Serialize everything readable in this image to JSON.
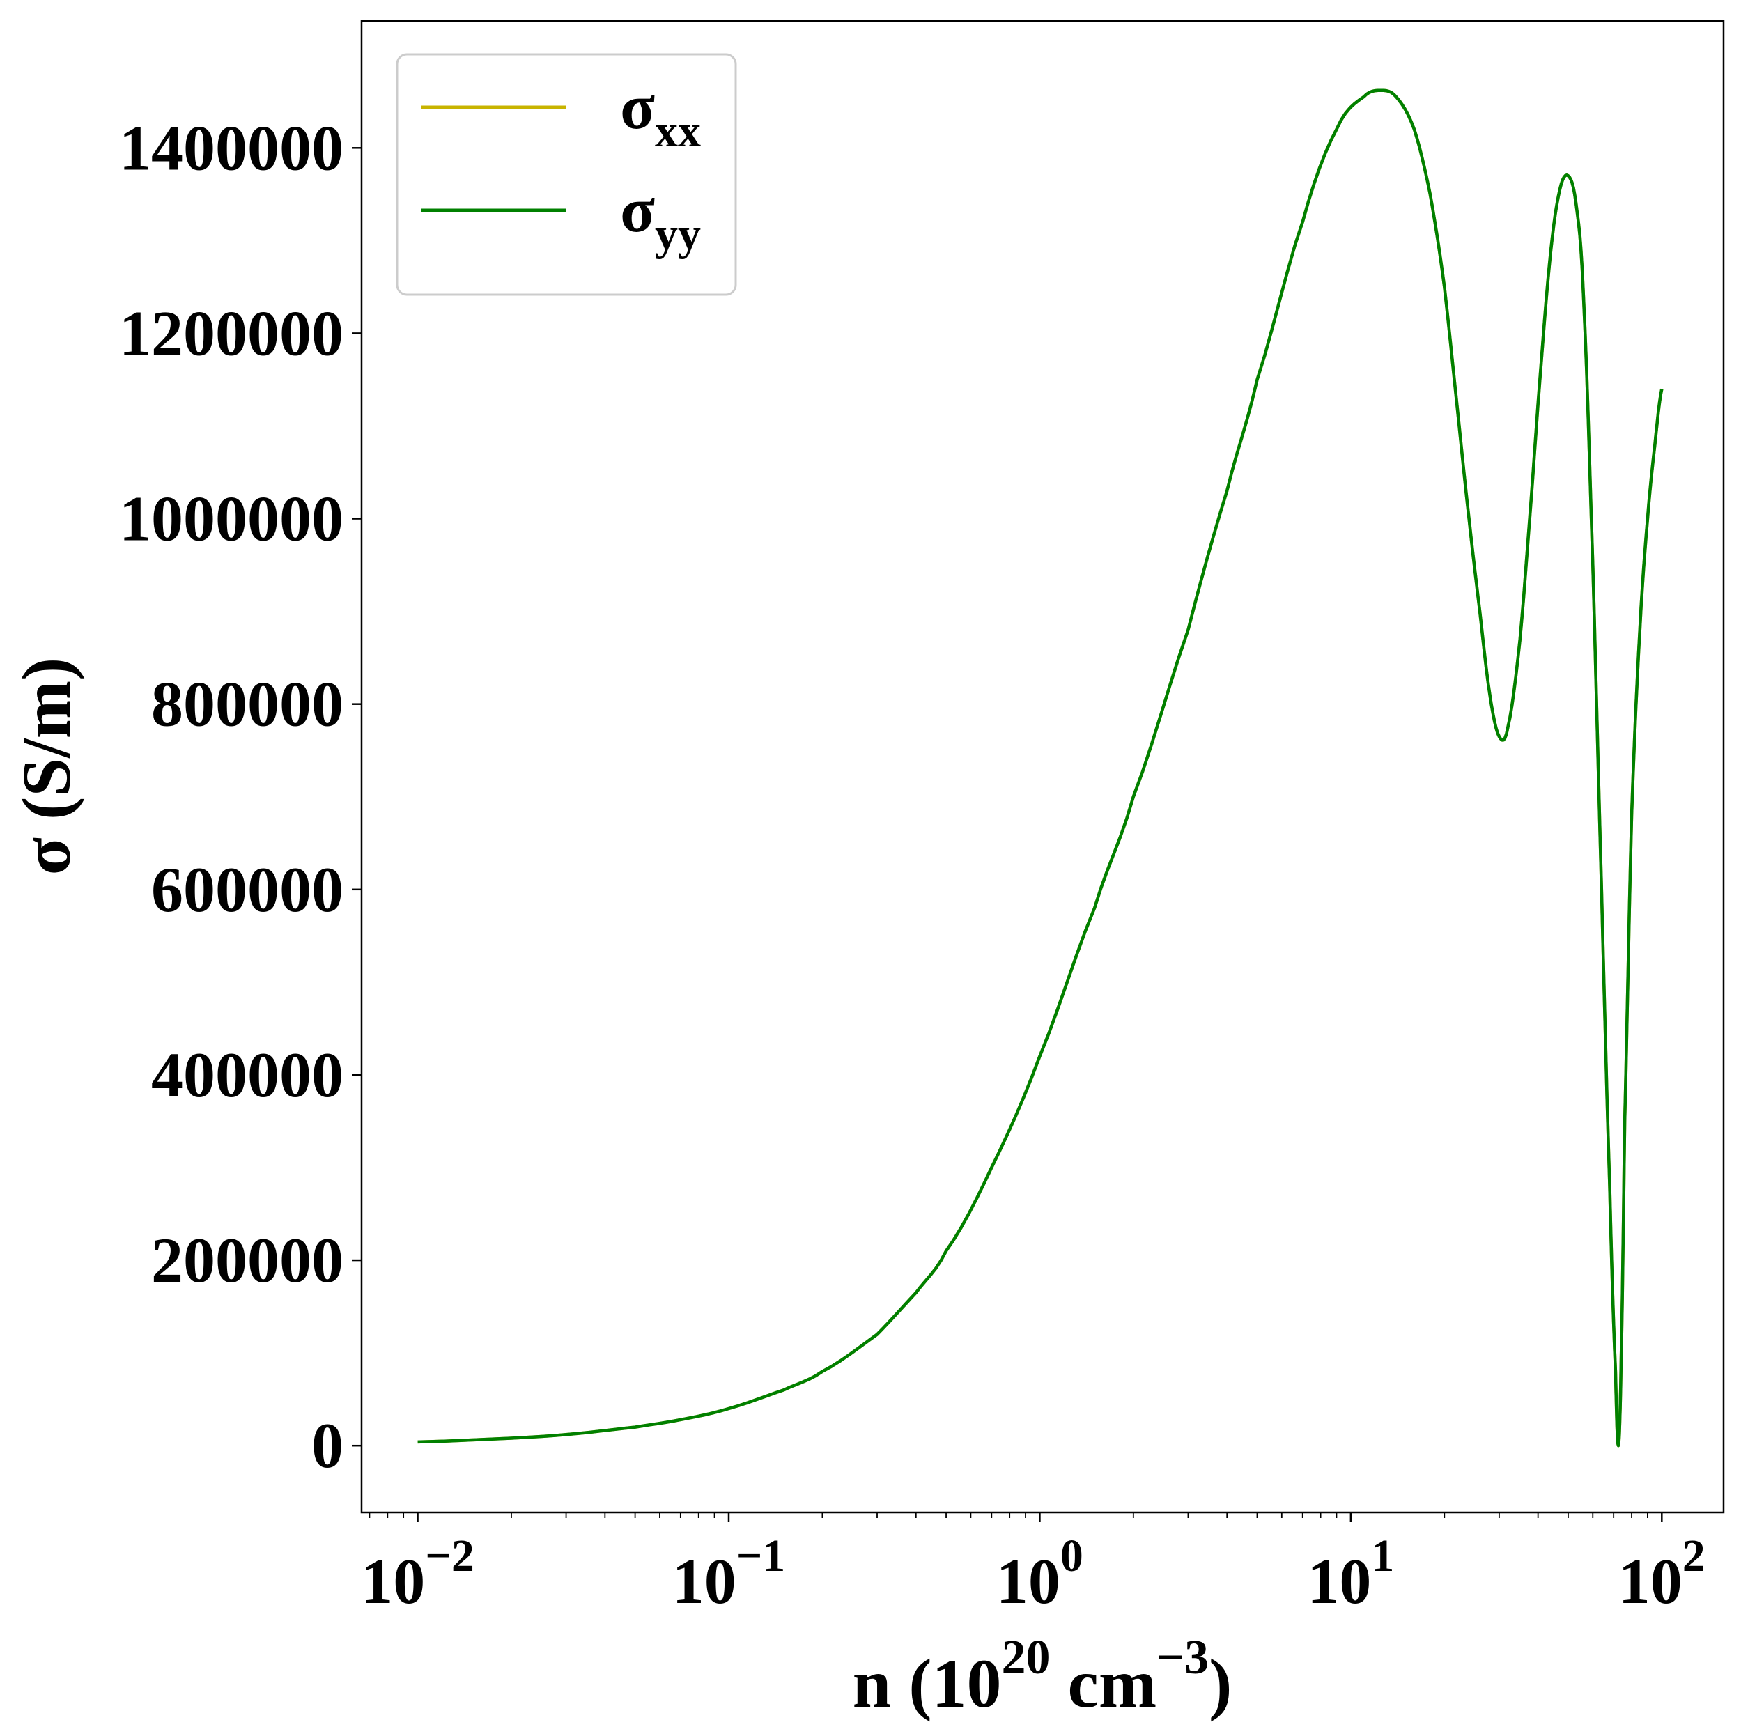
{
  "chart_data": {
    "type": "line",
    "xscale": "log",
    "xlim": [
      0.0066,
      158
    ],
    "ylim": [
      -72000,
      1537000
    ],
    "xlabel": {
      "base": "n (10",
      "exp1": "20",
      "mid": " cm",
      "exp2": "−3",
      "tail": ")"
    },
    "ylabel": "σ (S/m)",
    "grid": false,
    "legend_position": "top-left",
    "x_ticks": [
      {
        "value": 0.01,
        "base": "10",
        "exp": "−2"
      },
      {
        "value": 0.1,
        "base": "10",
        "exp": "−1"
      },
      {
        "value": 1,
        "base": "10",
        "exp": "0"
      },
      {
        "value": 10,
        "base": "10",
        "exp": "1"
      },
      {
        "value": 100,
        "base": "10",
        "exp": "2"
      }
    ],
    "y_ticks": [
      {
        "value": 0,
        "label": "0"
      },
      {
        "value": 200000,
        "label": "200000"
      },
      {
        "value": 400000,
        "label": "400000"
      },
      {
        "value": 600000,
        "label": "600000"
      },
      {
        "value": 800000,
        "label": "800000"
      },
      {
        "value": 1000000,
        "label": "1000000"
      },
      {
        "value": 1200000,
        "label": "1200000"
      },
      {
        "value": 1400000,
        "label": "1400000"
      }
    ],
    "series": [
      {
        "name": {
          "base": "σ",
          "sub": "xx"
        },
        "color": "#c8b400",
        "x": [
          0.01,
          0.02,
          0.03,
          0.05,
          0.07,
          0.1,
          0.15,
          0.2,
          0.3,
          0.4,
          0.5,
          0.7,
          1.0,
          1.5,
          2,
          3,
          4,
          5,
          7,
          9,
          11,
          12.5,
          14,
          16,
          18,
          20,
          22,
          24,
          26,
          28,
          30,
          32,
          35,
          38,
          41,
          44,
          47,
          50,
          53,
          56,
          60,
          64,
          68,
          71,
          72.5,
          74,
          76,
          80,
          85,
          90,
          95,
          100
        ],
        "y": [
          4000,
          8000,
          12000,
          20000,
          28000,
          40000,
          60000,
          80000,
          120000,
          165000,
          210000,
          300000,
          420000,
          580000,
          700000,
          880000,
          1030000,
          1150000,
          1320000,
          1420000,
          1455000,
          1462000,
          1455000,
          1420000,
          1350000,
          1250000,
          1120000,
          1000000,
          900000,
          810000,
          765000,
          775000,
          870000,
          1020000,
          1170000,
          1290000,
          1355000,
          1370000,
          1340000,
          1240000,
          950000,
          600000,
          280000,
          80000,
          0,
          90000,
          350000,
          680000,
          880000,
          1000000,
          1080000,
          1140000
        ]
      },
      {
        "name": {
          "base": "σ",
          "sub": "yy"
        },
        "color": "#008000",
        "x": [
          0.01,
          0.02,
          0.03,
          0.05,
          0.07,
          0.1,
          0.15,
          0.2,
          0.3,
          0.4,
          0.5,
          0.7,
          1.0,
          1.5,
          2,
          3,
          4,
          5,
          7,
          9,
          11,
          12.5,
          14,
          16,
          18,
          20,
          22,
          24,
          26,
          28,
          30,
          32,
          35,
          38,
          41,
          44,
          47,
          50,
          53,
          56,
          60,
          64,
          68,
          71,
          72.5,
          74,
          76,
          80,
          85,
          90,
          95,
          100
        ],
        "y": [
          4000,
          8000,
          12000,
          20000,
          28000,
          40000,
          60000,
          80000,
          120000,
          165000,
          210000,
          300000,
          420000,
          580000,
          700000,
          880000,
          1030000,
          1150000,
          1320000,
          1420000,
          1455000,
          1462000,
          1455000,
          1420000,
          1350000,
          1250000,
          1120000,
          1000000,
          900000,
          810000,
          765000,
          775000,
          870000,
          1020000,
          1170000,
          1290000,
          1355000,
          1370000,
          1340000,
          1240000,
          950000,
          600000,
          280000,
          80000,
          0,
          90000,
          350000,
          680000,
          880000,
          1000000,
          1080000,
          1140000
        ]
      }
    ]
  }
}
